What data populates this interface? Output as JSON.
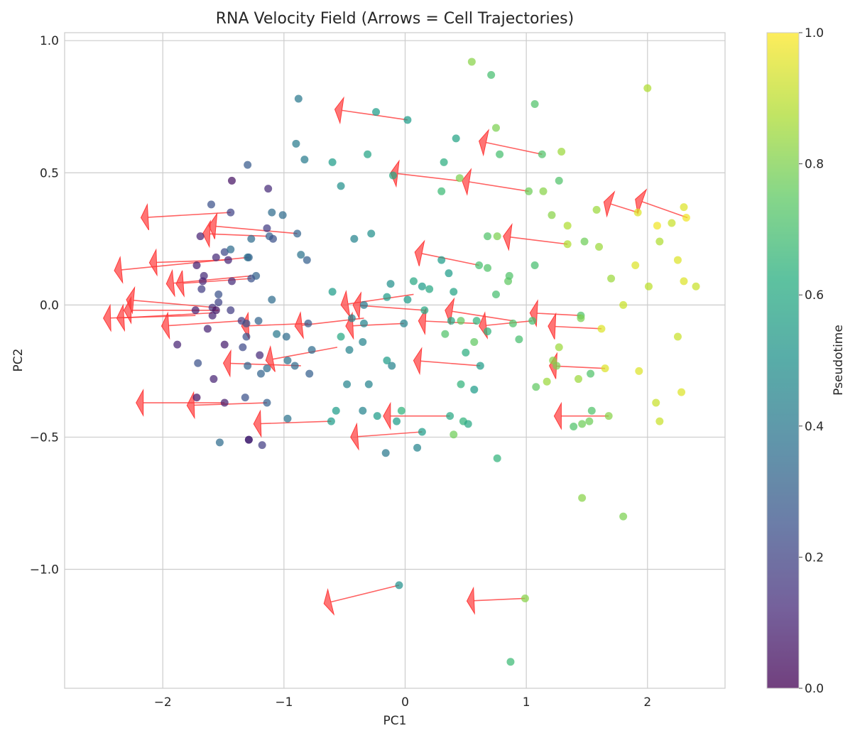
{
  "chart_data": {
    "type": "scatter",
    "title": "RNA Velocity Field (Arrows = Cell Trajectories)",
    "xlabel": "PC1",
    "ylabel": "PC2",
    "xlim": [
      -2.81,
      2.64
    ],
    "ylim": [
      -1.45,
      1.03
    ],
    "grid": true,
    "x_ticks": [
      -2,
      -1,
      0,
      1,
      2
    ],
    "x_tick_labels": [
      "−2",
      "−1",
      "0",
      "1",
      "2"
    ],
    "y_ticks": [
      -1.0,
      -0.5,
      0.0,
      0.5,
      1.0
    ],
    "y_tick_labels": [
      "−1.0",
      "−0.5",
      "0.0",
      "0.5",
      "1.0"
    ],
    "colorbar": {
      "label": "Pseudotime",
      "range": [
        0,
        1
      ],
      "ticks": [
        0.0,
        0.2,
        0.4,
        0.6,
        0.8,
        1.0
      ],
      "tick_labels": [
        "0.0",
        "0.2",
        "0.4",
        "0.6",
        "0.8",
        "1.0"
      ],
      "colormap": "viridis",
      "placement": "right"
    },
    "arrow_color": "#ff3b3b",
    "points": [
      {
        "x": 0.55,
        "y": 0.92,
        "t": 0.82
      },
      {
        "x": 0.71,
        "y": 0.87,
        "t": 0.7
      },
      {
        "x": 1.07,
        "y": 0.76,
        "t": 0.72
      },
      {
        "x": 2.0,
        "y": 0.82,
        "t": 0.88
      },
      {
        "x": 0.75,
        "y": 0.67,
        "t": 0.8
      },
      {
        "x": 1.29,
        "y": 0.58,
        "t": 0.85
      },
      {
        "x": 1.13,
        "y": 0.57,
        "t": 0.72
      },
      {
        "x": 0.78,
        "y": 0.57,
        "t": 0.7
      },
      {
        "x": 0.42,
        "y": 0.63,
        "t": 0.58
      },
      {
        "x": 0.32,
        "y": 0.54,
        "t": 0.62
      },
      {
        "x": 0.02,
        "y": 0.7,
        "t": 0.55
      },
      {
        "x": -0.24,
        "y": 0.73,
        "t": 0.55
      },
      {
        "x": -0.31,
        "y": 0.57,
        "t": 0.58
      },
      {
        "x": -0.88,
        "y": 0.78,
        "t": 0.4
      },
      {
        "x": -0.9,
        "y": 0.61,
        "t": 0.42
      },
      {
        "x": -0.83,
        "y": 0.55,
        "t": 0.42
      },
      {
        "x": -0.6,
        "y": 0.54,
        "t": 0.55
      },
      {
        "x": -0.53,
        "y": 0.45,
        "t": 0.5
      },
      {
        "x": -1.3,
        "y": 0.53,
        "t": 0.28
      },
      {
        "x": -1.43,
        "y": 0.47,
        "t": 0.05
      },
      {
        "x": -1.13,
        "y": 0.44,
        "t": 0.12
      },
      {
        "x": -0.1,
        "y": 0.49,
        "t": 0.6
      },
      {
        "x": 0.3,
        "y": 0.43,
        "t": 0.68
      },
      {
        "x": 0.45,
        "y": 0.48,
        "t": 0.8
      },
      {
        "x": 1.02,
        "y": 0.43,
        "t": 0.78
      },
      {
        "x": 1.14,
        "y": 0.43,
        "t": 0.82
      },
      {
        "x": 1.27,
        "y": 0.47,
        "t": 0.72
      },
      {
        "x": 1.58,
        "y": 0.36,
        "t": 0.85
      },
      {
        "x": 1.92,
        "y": 0.35,
        "t": 0.95
      },
      {
        "x": 2.3,
        "y": 0.37,
        "t": 0.95
      },
      {
        "x": 2.32,
        "y": 0.33,
        "t": 0.98
      },
      {
        "x": 2.2,
        "y": 0.31,
        "t": 0.92
      },
      {
        "x": 2.08,
        "y": 0.3,
        "t": 0.98
      },
      {
        "x": 1.21,
        "y": 0.34,
        "t": 0.82
      },
      {
        "x": 1.34,
        "y": 0.3,
        "t": 0.88
      },
      {
        "x": -1.6,
        "y": 0.38,
        "t": 0.25
      },
      {
        "x": -1.44,
        "y": 0.35,
        "t": 0.2
      },
      {
        "x": -1.1,
        "y": 0.35,
        "t": 0.35
      },
      {
        "x": -1.01,
        "y": 0.34,
        "t": 0.35
      },
      {
        "x": -1.69,
        "y": 0.26,
        "t": 0.1
      },
      {
        "x": -1.14,
        "y": 0.29,
        "t": 0.18
      },
      {
        "x": -0.89,
        "y": 0.27,
        "t": 0.32
      },
      {
        "x": -1.27,
        "y": 0.25,
        "t": 0.35
      },
      {
        "x": -1.12,
        "y": 0.26,
        "t": 0.3
      },
      {
        "x": -1.09,
        "y": 0.25,
        "t": 0.25
      },
      {
        "x": -0.42,
        "y": 0.25,
        "t": 0.45
      },
      {
        "x": -0.28,
        "y": 0.27,
        "t": 0.5
      },
      {
        "x": 0.68,
        "y": 0.26,
        "t": 0.72
      },
      {
        "x": 0.76,
        "y": 0.26,
        "t": 0.8
      },
      {
        "x": 1.34,
        "y": 0.23,
        "t": 0.88
      },
      {
        "x": 1.48,
        "y": 0.24,
        "t": 0.78
      },
      {
        "x": 1.6,
        "y": 0.22,
        "t": 0.85
      },
      {
        "x": 2.1,
        "y": 0.24,
        "t": 0.88
      },
      {
        "x": -1.56,
        "y": 0.18,
        "t": 0.12
      },
      {
        "x": -1.49,
        "y": 0.2,
        "t": 0.22
      },
      {
        "x": -1.44,
        "y": 0.21,
        "t": 0.35
      },
      {
        "x": -1.3,
        "y": 0.18,
        "t": 0.4
      },
      {
        "x": -1.46,
        "y": 0.17,
        "t": 0.1
      },
      {
        "x": -1.29,
        "y": 0.18,
        "t": 0.32
      },
      {
        "x": -0.86,
        "y": 0.19,
        "t": 0.38
      },
      {
        "x": -0.81,
        "y": 0.17,
        "t": 0.3
      },
      {
        "x": 0.3,
        "y": 0.17,
        "t": 0.55
      },
      {
        "x": 0.61,
        "y": 0.15,
        "t": 0.7
      },
      {
        "x": 0.68,
        "y": 0.14,
        "t": 0.72
      },
      {
        "x": 1.07,
        "y": 0.15,
        "t": 0.7
      },
      {
        "x": 1.9,
        "y": 0.15,
        "t": 0.95
      },
      {
        "x": 2.25,
        "y": 0.17,
        "t": 0.95
      },
      {
        "x": -1.72,
        "y": 0.15,
        "t": 0.08
      },
      {
        "x": -1.66,
        "y": 0.11,
        "t": 0.12
      },
      {
        "x": -1.67,
        "y": 0.09,
        "t": 0.1
      },
      {
        "x": -1.43,
        "y": 0.09,
        "t": 0.12
      },
      {
        "x": -1.23,
        "y": 0.11,
        "t": 0.32
      },
      {
        "x": -1.27,
        "y": 0.1,
        "t": 0.25
      },
      {
        "x": -1.68,
        "y": 0.06,
        "t": 0.18
      },
      {
        "x": -0.12,
        "y": 0.08,
        "t": 0.5
      },
      {
        "x": 0.07,
        "y": 0.09,
        "t": 0.6
      },
      {
        "x": 0.36,
        "y": 0.12,
        "t": 0.55
      },
      {
        "x": 0.14,
        "y": 0.07,
        "t": 0.55
      },
      {
        "x": 0.2,
        "y": 0.06,
        "t": 0.6
      },
      {
        "x": 0.4,
        "y": 0.05,
        "t": 0.58
      },
      {
        "x": 0.75,
        "y": 0.04,
        "t": 0.7
      },
      {
        "x": 0.85,
        "y": 0.09,
        "t": 0.75
      },
      {
        "x": 0.86,
        "y": 0.11,
        "t": 0.72
      },
      {
        "x": 1.7,
        "y": 0.1,
        "t": 0.85
      },
      {
        "x": 2.01,
        "y": 0.07,
        "t": 0.9
      },
      {
        "x": 2.3,
        "y": 0.09,
        "t": 0.95
      },
      {
        "x": 2.4,
        "y": 0.07,
        "t": 0.92
      },
      {
        "x": -1.54,
        "y": 0.04,
        "t": 0.25
      },
      {
        "x": -1.54,
        "y": 0.01,
        "t": 0.2
      },
      {
        "x": -1.59,
        "y": -0.01,
        "t": 0.15
      },
      {
        "x": -1.56,
        "y": -0.02,
        "t": 0.05
      },
      {
        "x": -1.73,
        "y": -0.02,
        "t": 0.08
      },
      {
        "x": -1.44,
        "y": -0.02,
        "t": 0.18
      },
      {
        "x": -1.59,
        "y": -0.04,
        "t": 0.1
      },
      {
        "x": -1.1,
        "y": 0.02,
        "t": 0.35
      },
      {
        "x": -0.6,
        "y": 0.05,
        "t": 0.55
      },
      {
        "x": -0.15,
        "y": 0.03,
        "t": 0.55
      },
      {
        "x": 0.02,
        "y": 0.02,
        "t": 0.55
      },
      {
        "x": -0.34,
        "y": 0.0,
        "t": 0.4
      },
      {
        "x": 0.16,
        "y": -0.02,
        "t": 0.6
      },
      {
        "x": -0.44,
        "y": -0.05,
        "t": 0.45
      },
      {
        "x": -0.34,
        "y": -0.07,
        "t": 0.45
      },
      {
        "x": -1.35,
        "y": -0.06,
        "t": 0.18
      },
      {
        "x": -1.21,
        "y": -0.06,
        "t": 0.32
      },
      {
        "x": -1.31,
        "y": -0.07,
        "t": 0.25
      },
      {
        "x": -0.8,
        "y": -0.07,
        "t": 0.28
      },
      {
        "x": -0.01,
        "y": -0.07,
        "t": 0.45
      },
      {
        "x": 0.38,
        "y": -0.06,
        "t": 0.6
      },
      {
        "x": 0.46,
        "y": -0.06,
        "t": 0.75
      },
      {
        "x": 0.59,
        "y": -0.06,
        "t": 0.65
      },
      {
        "x": 0.89,
        "y": -0.07,
        "t": 0.72
      },
      {
        "x": 1.05,
        "y": -0.06,
        "t": 0.7
      },
      {
        "x": 1.45,
        "y": -0.04,
        "t": 0.72
      },
      {
        "x": 1.45,
        "y": -0.05,
        "t": 0.8
      },
      {
        "x": 1.62,
        "y": -0.09,
        "t": 0.95
      },
      {
        "x": 1.8,
        "y": 0.0,
        "t": 0.92
      },
      {
        "x": -1.63,
        "y": -0.09,
        "t": 0.1
      },
      {
        "x": -1.31,
        "y": -0.12,
        "t": 0.25
      },
      {
        "x": -1.06,
        "y": -0.11,
        "t": 0.4
      },
      {
        "x": -0.98,
        "y": -0.12,
        "t": 0.35
      },
      {
        "x": 0.33,
        "y": -0.11,
        "t": 0.72
      },
      {
        "x": 0.68,
        "y": -0.1,
        "t": 0.65
      },
      {
        "x": 0.94,
        "y": -0.13,
        "t": 0.7
      },
      {
        "x": -0.53,
        "y": -0.12,
        "t": 0.6
      },
      {
        "x": -0.35,
        "y": -0.14,
        "t": 0.45
      },
      {
        "x": 0.57,
        "y": -0.14,
        "t": 0.75
      },
      {
        "x": 2.25,
        "y": -0.12,
        "t": 0.92
      },
      {
        "x": -1.88,
        "y": -0.15,
        "t": 0.1
      },
      {
        "x": -1.49,
        "y": -0.15,
        "t": 0.08
      },
      {
        "x": -1.34,
        "y": -0.16,
        "t": 0.22
      },
      {
        "x": -1.2,
        "y": -0.19,
        "t": 0.12
      },
      {
        "x": -0.77,
        "y": -0.17,
        "t": 0.35
      },
      {
        "x": -0.46,
        "y": -0.17,
        "t": 0.45
      },
      {
        "x": -0.15,
        "y": -0.21,
        "t": 0.55
      },
      {
        "x": -0.11,
        "y": -0.23,
        "t": 0.45
      },
      {
        "x": 0.5,
        "y": -0.18,
        "t": 0.62
      },
      {
        "x": 0.62,
        "y": -0.23,
        "t": 0.55
      },
      {
        "x": 1.27,
        "y": -0.16,
        "t": 0.85
      },
      {
        "x": 1.22,
        "y": -0.21,
        "t": 0.82
      },
      {
        "x": 1.25,
        "y": -0.23,
        "t": 0.8
      },
      {
        "x": 1.65,
        "y": -0.24,
        "t": 0.95
      },
      {
        "x": 1.93,
        "y": -0.25,
        "t": 0.95
      },
      {
        "x": -1.71,
        "y": -0.22,
        "t": 0.25
      },
      {
        "x": -1.3,
        "y": -0.23,
        "t": 0.32
      },
      {
        "x": -1.19,
        "y": -0.26,
        "t": 0.32
      },
      {
        "x": -1.14,
        "y": -0.24,
        "t": 0.35
      },
      {
        "x": -0.97,
        "y": -0.21,
        "t": 0.38
      },
      {
        "x": -0.91,
        "y": -0.23,
        "t": 0.35
      },
      {
        "x": -0.79,
        "y": -0.26,
        "t": 0.3
      },
      {
        "x": 1.53,
        "y": -0.26,
        "t": 0.72
      },
      {
        "x": 1.43,
        "y": -0.28,
        "t": 0.85
      },
      {
        "x": 1.17,
        "y": -0.29,
        "t": 0.85
      },
      {
        "x": 1.08,
        "y": -0.31,
        "t": 0.75
      },
      {
        "x": -1.58,
        "y": -0.28,
        "t": 0.1
      },
      {
        "x": -0.48,
        "y": -0.3,
        "t": 0.45
      },
      {
        "x": -0.3,
        "y": -0.3,
        "t": 0.45
      },
      {
        "x": 0.46,
        "y": -0.3,
        "t": 0.65
      },
      {
        "x": 0.57,
        "y": -0.32,
        "t": 0.55
      },
      {
        "x": 2.28,
        "y": -0.33,
        "t": 0.95
      },
      {
        "x": -1.72,
        "y": -0.35,
        "t": 0.05
      },
      {
        "x": -1.32,
        "y": -0.35,
        "t": 0.25
      },
      {
        "x": -1.49,
        "y": -0.37,
        "t": 0.08
      },
      {
        "x": -1.14,
        "y": -0.37,
        "t": 0.3
      },
      {
        "x": 2.07,
        "y": -0.37,
        "t": 0.92
      },
      {
        "x": -0.57,
        "y": -0.4,
        "t": 0.55
      },
      {
        "x": -0.35,
        "y": -0.4,
        "t": 0.45
      },
      {
        "x": -0.03,
        "y": -0.4,
        "t": 0.65
      },
      {
        "x": -0.23,
        "y": -0.42,
        "t": 0.55
      },
      {
        "x": 0.37,
        "y": -0.42,
        "t": 0.6
      },
      {
        "x": 1.54,
        "y": -0.4,
        "t": 0.72
      },
      {
        "x": 1.68,
        "y": -0.42,
        "t": 0.82
      },
      {
        "x": -0.97,
        "y": -0.43,
        "t": 0.38
      },
      {
        "x": -0.61,
        "y": -0.44,
        "t": 0.55
      },
      {
        "x": -0.07,
        "y": -0.44,
        "t": 0.55
      },
      {
        "x": 0.48,
        "y": -0.44,
        "t": 0.65
      },
      {
        "x": 0.52,
        "y": -0.45,
        "t": 0.6
      },
      {
        "x": 1.39,
        "y": -0.46,
        "t": 0.72
      },
      {
        "x": 1.46,
        "y": -0.45,
        "t": 0.78
      },
      {
        "x": 1.52,
        "y": -0.44,
        "t": 0.78
      },
      {
        "x": 2.1,
        "y": -0.44,
        "t": 0.92
      },
      {
        "x": 0.14,
        "y": -0.48,
        "t": 0.55
      },
      {
        "x": 0.4,
        "y": -0.49,
        "t": 0.78
      },
      {
        "x": -1.53,
        "y": -0.52,
        "t": 0.35
      },
      {
        "x": -1.29,
        "y": -0.51,
        "t": 0.05
      },
      {
        "x": -1.29,
        "y": -0.51,
        "t": 0.12
      },
      {
        "x": -1.18,
        "y": -0.53,
        "t": 0.18
      },
      {
        "x": 0.1,
        "y": -0.54,
        "t": 0.45
      },
      {
        "x": -0.16,
        "y": -0.56,
        "t": 0.4
      },
      {
        "x": 0.76,
        "y": -0.58,
        "t": 0.65
      },
      {
        "x": 1.46,
        "y": -0.73,
        "t": 0.82
      },
      {
        "x": 1.8,
        "y": -0.8,
        "t": 0.8
      },
      {
        "x": -0.05,
        "y": -1.06,
        "t": 0.5
      },
      {
        "x": 0.99,
        "y": -1.11,
        "t": 0.82
      },
      {
        "x": 0.87,
        "y": -1.35,
        "t": 0.68
      }
    ],
    "arrows": [
      {
        "x": 0.02,
        "y": 0.7,
        "dx": -0.6,
        "dy": 0.04
      },
      {
        "x": 1.13,
        "y": 0.57,
        "dx": -0.52,
        "dy": 0.05
      },
      {
        "x": 1.02,
        "y": 0.43,
        "dx": -0.55,
        "dy": 0.04
      },
      {
        "x": 0.44,
        "y": 0.47,
        "dx": -0.56,
        "dy": 0.03
      },
      {
        "x": 2.33,
        "y": 0.33,
        "dx": -0.43,
        "dy": 0.07
      },
      {
        "x": 1.92,
        "y": 0.35,
        "dx": -0.28,
        "dy": 0.04
      },
      {
        "x": 1.34,
        "y": 0.23,
        "dx": -0.53,
        "dy": 0.03
      },
      {
        "x": 0.61,
        "y": 0.15,
        "dx": -0.53,
        "dy": 0.05
      },
      {
        "x": -1.44,
        "y": 0.35,
        "dx": -0.74,
        "dy": -0.02
      },
      {
        "x": -0.89,
        "y": 0.27,
        "dx": -0.73,
        "dy": 0.03
      },
      {
        "x": -1.14,
        "y": 0.26,
        "dx": -0.53,
        "dy": 0.01
      },
      {
        "x": -1.29,
        "y": 0.18,
        "dx": -1.11,
        "dy": -0.05
      },
      {
        "x": -1.49,
        "y": 0.17,
        "dx": -0.62,
        "dy": -0.01
      },
      {
        "x": -1.27,
        "y": 0.1,
        "dx": -0.62,
        "dy": -0.02
      },
      {
        "x": -1.27,
        "y": 0.11,
        "dx": -0.7,
        "dy": -0.03
      },
      {
        "x": -1.56,
        "y": -0.01,
        "dx": -0.74,
        "dy": 0.03
      },
      {
        "x": -1.54,
        "y": -0.02,
        "dx": -0.78,
        "dy": 0.0
      },
      {
        "x": -1.59,
        "y": -0.03,
        "dx": -0.79,
        "dy": -0.02
      },
      {
        "x": -1.73,
        "y": -0.04,
        "dx": -0.76,
        "dy": -0.01
      },
      {
        "x": -1.35,
        "y": -0.06,
        "dx": -0.66,
        "dy": -0.02
      },
      {
        "x": 0.07,
        "y": 0.04,
        "dx": -0.6,
        "dy": -0.04
      },
      {
        "x": 0.16,
        "y": -0.02,
        "dx": -0.59,
        "dy": 0.02
      },
      {
        "x": -0.34,
        "y": -0.05,
        "dx": -0.57,
        "dy": -0.03
      },
      {
        "x": -0.01,
        "y": -0.07,
        "dx": -0.48,
        "dy": -0.01
      },
      {
        "x": -0.8,
        "y": -0.07,
        "dx": -0.55,
        "dy": -0.01
      },
      {
        "x": -0.56,
        "y": -0.16,
        "dx": -0.59,
        "dy": -0.05
      },
      {
        "x": -0.86,
        "y": -0.23,
        "dx": -0.64,
        "dy": 0.01
      },
      {
        "x": 0.89,
        "y": -0.06,
        "dx": -0.56,
        "dy": 0.04
      },
      {
        "x": 1.45,
        "y": -0.04,
        "dx": -0.42,
        "dy": 0.01
      },
      {
        "x": 1.05,
        "y": -0.06,
        "dx": -0.44,
        "dy": -0.02
      },
      {
        "x": 0.59,
        "y": -0.07,
        "dx": -0.48,
        "dy": 0.01
      },
      {
        "x": 1.62,
        "y": -0.09,
        "dx": -0.44,
        "dy": 0.01
      },
      {
        "x": 0.62,
        "y": -0.23,
        "dx": -0.55,
        "dy": 0.02
      },
      {
        "x": 1.65,
        "y": -0.24,
        "dx": -0.46,
        "dy": 0.01
      },
      {
        "x": -1.14,
        "y": -0.37,
        "dx": -0.66,
        "dy": -0.01
      },
      {
        "x": -1.49,
        "y": -0.37,
        "dx": -0.73,
        "dy": 0.0
      },
      {
        "x": -0.61,
        "y": -0.44,
        "dx": -0.64,
        "dy": -0.01
      },
      {
        "x": 0.37,
        "y": -0.42,
        "dx": -0.55,
        "dy": 0.0
      },
      {
        "x": 0.14,
        "y": -0.48,
        "dx": -0.59,
        "dy": -0.02
      },
      {
        "x": 1.68,
        "y": -0.42,
        "dx": -0.45,
        "dy": 0.0
      },
      {
        "x": -0.05,
        "y": -1.06,
        "dx": -0.62,
        "dy": -0.07
      },
      {
        "x": 0.99,
        "y": -1.11,
        "dx": -0.48,
        "dy": -0.01
      }
    ]
  }
}
